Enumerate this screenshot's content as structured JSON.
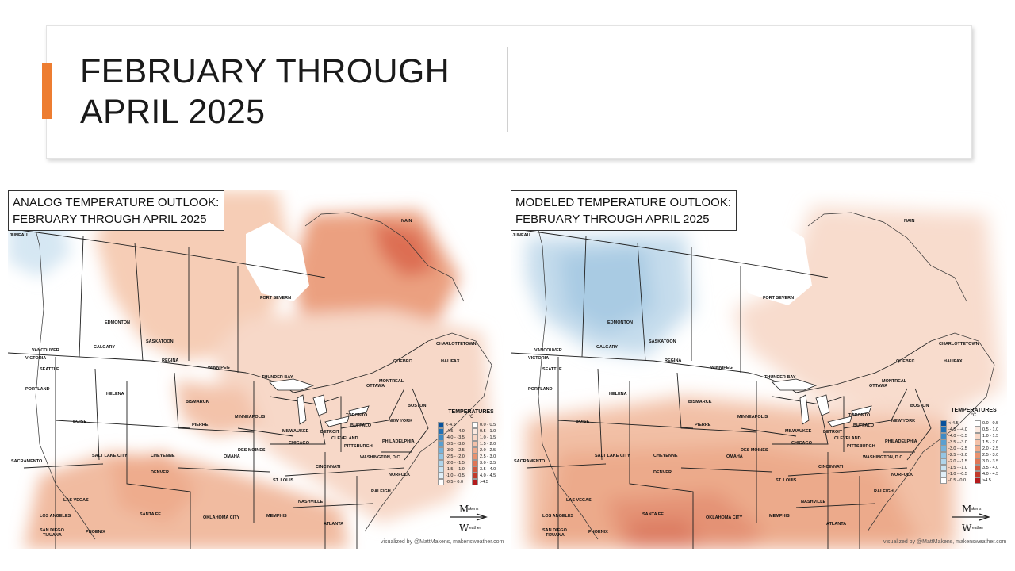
{
  "slide": {
    "title_lines": [
      "FEBRUARY THROUGH",
      "APRIL 2025"
    ],
    "accent_color": "#ed7d31"
  },
  "maps": [
    {
      "id": "analog",
      "title_lines": [
        "ANALOG TEMPERATURE OUTLOOK:",
        "FEBRUARY THROUGH APRIL 2025"
      ],
      "credit": "visualized by @MattMakens, makensweather.com"
    },
    {
      "id": "modeled",
      "title_lines": [
        "MODELED TEMPERATURE OUTLOOK:",
        "FEBRUARY THROUGH APRIL 2025"
      ],
      "credit": "visualized by @MattMakens, makensweather.com"
    }
  ],
  "legend": {
    "title": "TEMPERATURES",
    "unit": "°C",
    "cold": [
      {
        "label": "<-4.5",
        "color": "#08519c"
      },
      {
        "label": "-4.5 - -4.0",
        "color": "#2171b5"
      },
      {
        "label": "-4.0 - -3.5",
        "color": "#3f8ac4"
      },
      {
        "label": "-3.5 - -3.0",
        "color": "#5b9fd0"
      },
      {
        "label": "-3.0 - -2.5",
        "color": "#77b2da"
      },
      {
        "label": "-2.5 - -2.0",
        "color": "#94c4e3"
      },
      {
        "label": "-2.0 - -1.5",
        "color": "#b0d4ea"
      },
      {
        "label": "-1.5 - -1.0",
        "color": "#c9e2f1"
      },
      {
        "label": "-1.0 - -0.5",
        "color": "#e0eef7"
      },
      {
        "label": "-0.5 - 0.0",
        "color": "#ffffff"
      }
    ],
    "warm": [
      {
        "label": "0.0 - 0.5",
        "color": "#ffffff"
      },
      {
        "label": "0.5 - 1.0",
        "color": "#fbe8df"
      },
      {
        "label": "1.0 - 1.5",
        "color": "#f8d6c5"
      },
      {
        "label": "1.5 - 2.0",
        "color": "#f4c1a9"
      },
      {
        "label": "2.0 - 2.5",
        "color": "#efaa8c"
      },
      {
        "label": "2.5 - 3.0",
        "color": "#e9926f"
      },
      {
        "label": "3.0 - 3.5",
        "color": "#e07656"
      },
      {
        "label": "3.5 - 4.0",
        "color": "#d2583e"
      },
      {
        "label": "4.0 - 4.5",
        "color": "#c23a2b"
      },
      {
        "label": ">4.5",
        "color": "#b51a1c"
      }
    ]
  },
  "logo": {
    "text_top": "Makens",
    "text_bottom": "Weather"
  },
  "cities": [
    "JUNEAU",
    "EDMONTON",
    "CALGARY",
    "SASKATOON",
    "REGINA",
    "WINNIPEG",
    "FORT SEVERN",
    "VANCOUVER",
    "VICTORIA",
    "SEATTLE",
    "PORTLAND",
    "HELENA",
    "BOISE",
    "BISMARCK",
    "PIERRE",
    "MINNEAPOLIS",
    "THUNDER BAY",
    "SALT LAKE CITY",
    "CHEYENNE",
    "DENVER",
    "OMAHA",
    "DES MOINES",
    "CHICAGO",
    "MILWAUKEE",
    "DETROIT",
    "CLEVELAND",
    "TORONTO",
    "BUFFALO",
    "OTTAWA",
    "MONTREAL",
    "QUEBEC",
    "CHARLOTTETOWN",
    "HALIFAX",
    "BOSTON",
    "NEW YORK",
    "PHILADELPHIA",
    "PITTSBURGH",
    "WASHINGTON, D.C.",
    "NORFOLK",
    "RALEIGH",
    "CINCINNATI",
    "ST. LOUIS",
    "NASHVILLE",
    "MEMPHIS",
    "ATLANTA",
    "SACRAMENTO",
    "LAS VEGAS",
    "LOS ANGELES",
    "SAN DIEGO",
    "TIJUANA",
    "PHOENIX",
    "SANTA FE",
    "OKLAHOMA CITY",
    "NAIN"
  ]
}
